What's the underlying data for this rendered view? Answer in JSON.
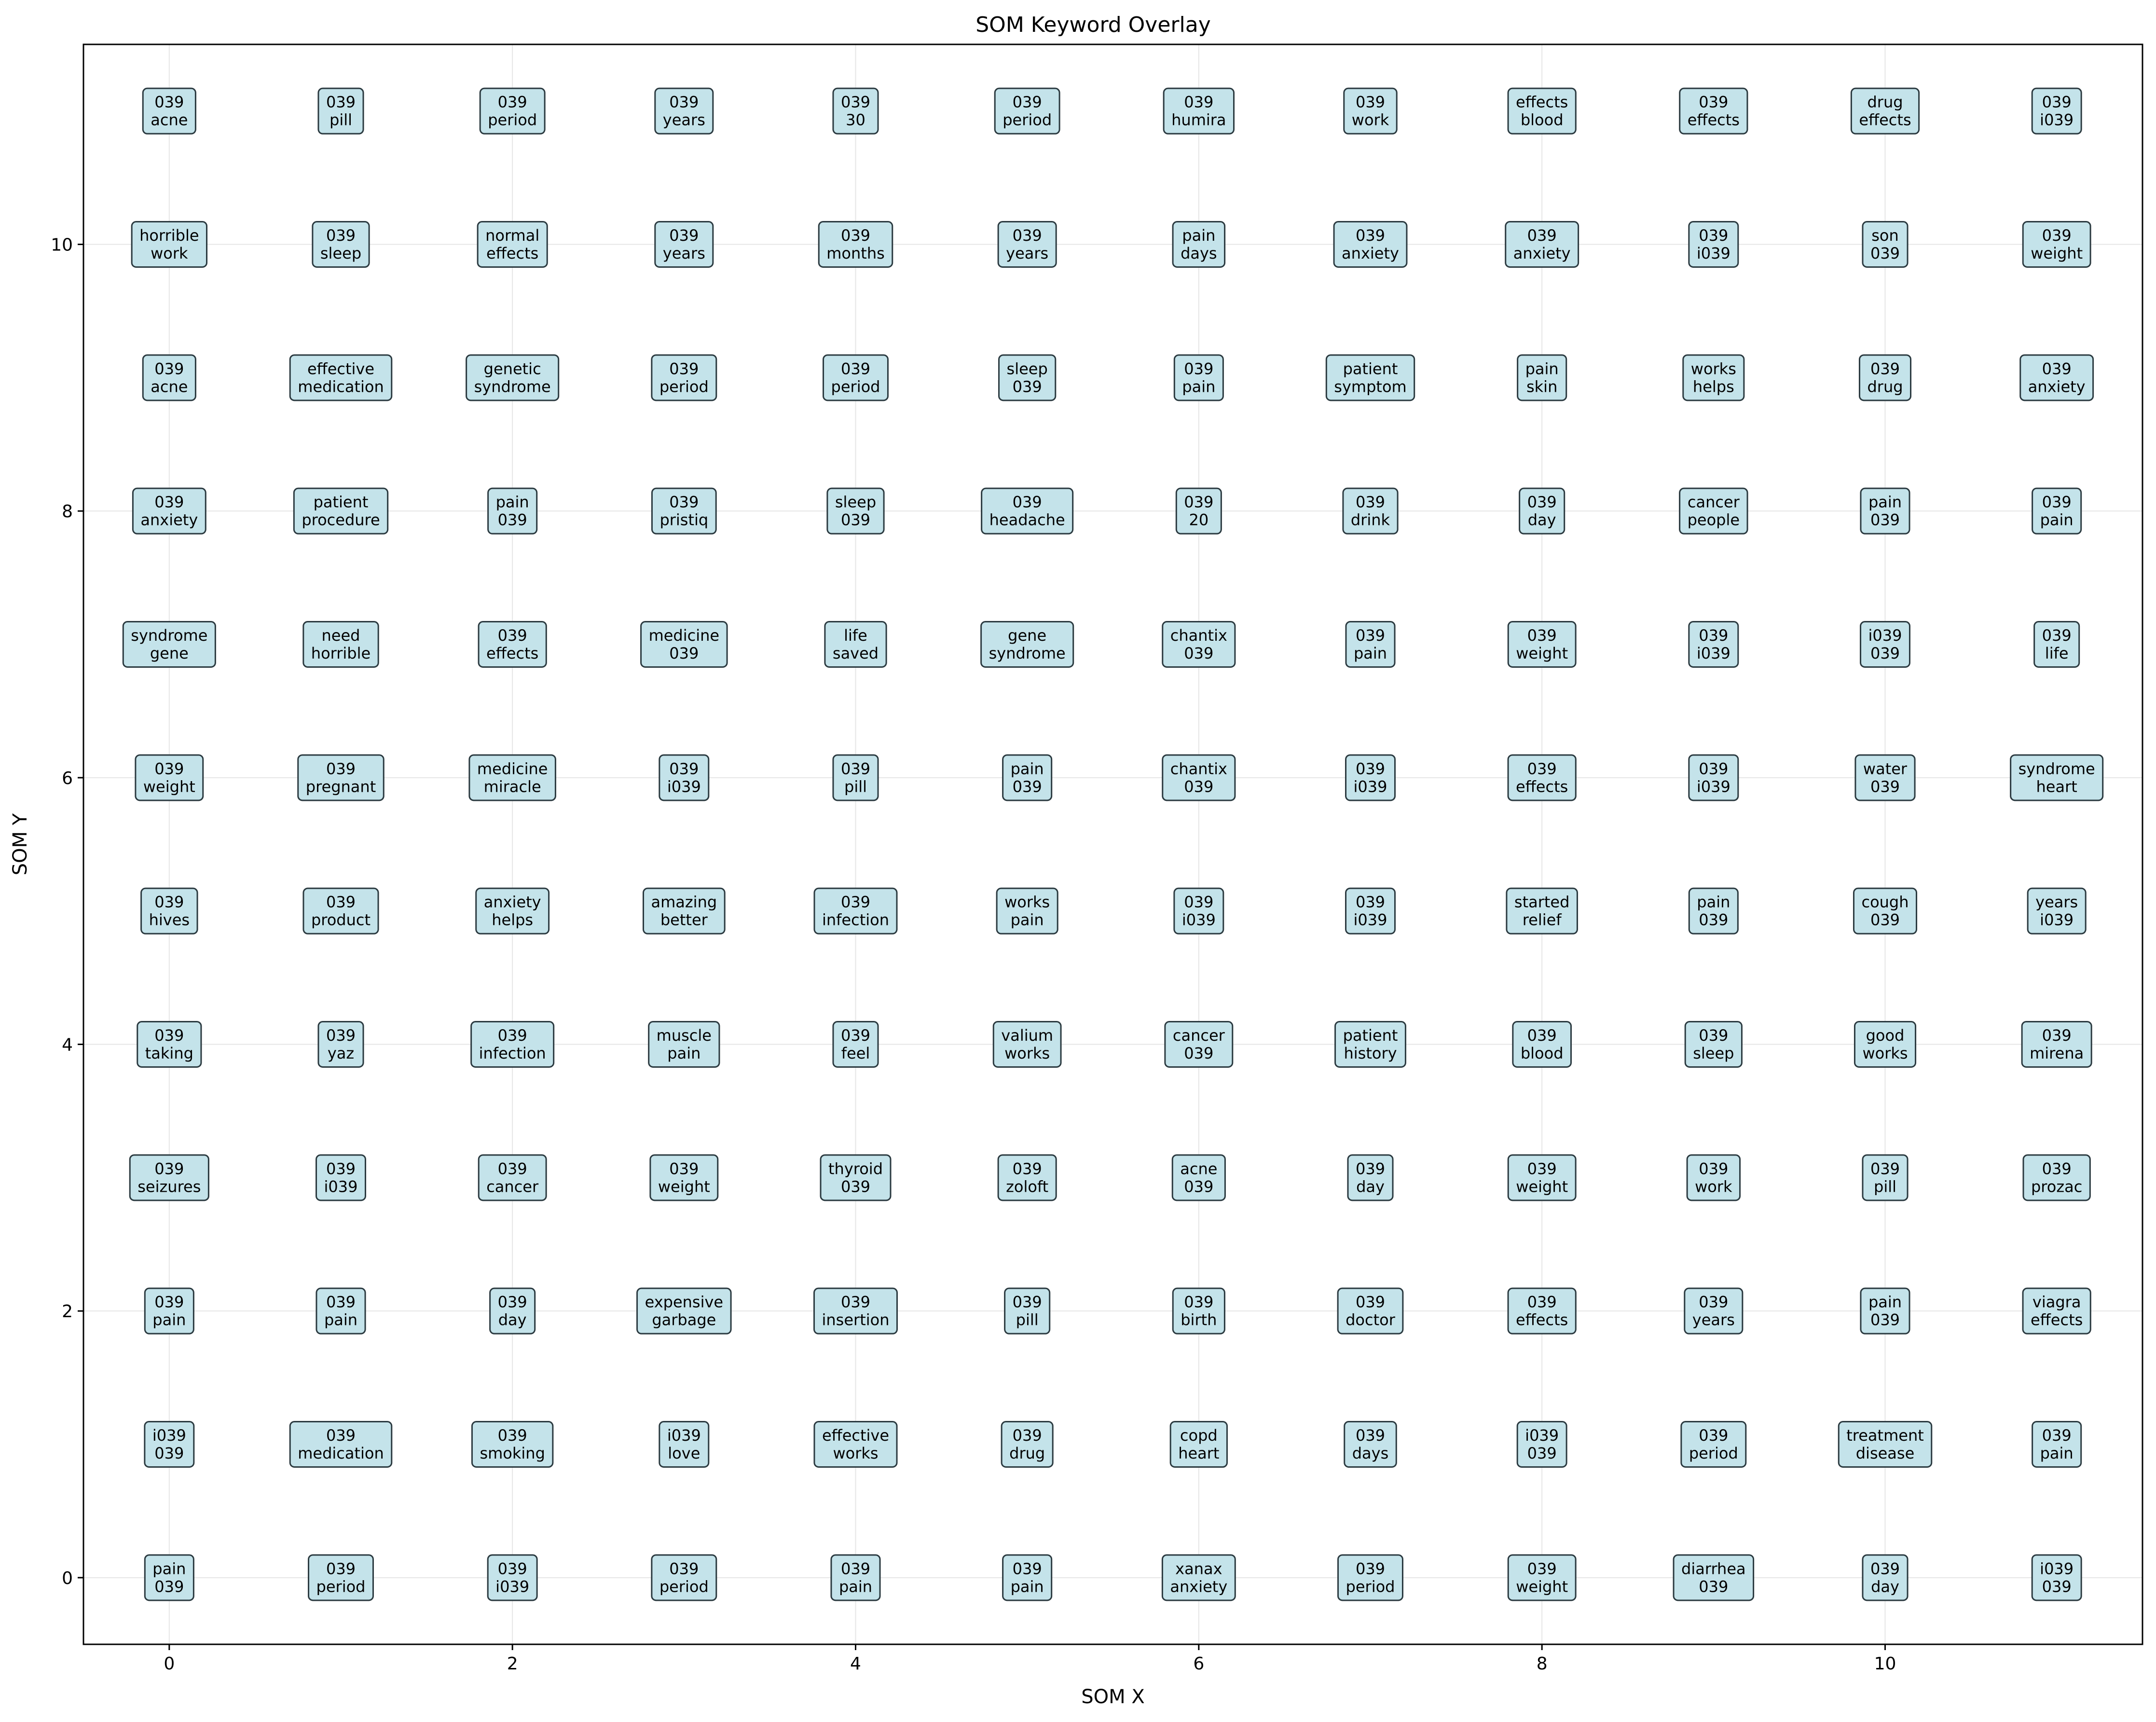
{
  "chart_data": {
    "type": "scatter",
    "title": "SOM Keyword Overlay",
    "xlabel": "SOM X",
    "ylabel": "SOM Y",
    "xlim": [
      -0.5,
      11.5
    ],
    "ylim": [
      -0.5,
      11.5
    ],
    "xticks": [
      0,
      2,
      4,
      6,
      8,
      10
    ],
    "yticks": [
      0,
      2,
      4,
      6,
      8,
      10
    ],
    "grid": true,
    "legend": "none",
    "colors": {
      "box_fill": "#c4e3ea",
      "box_edge": "#2b3a40",
      "grid": "#e6e6e6",
      "axes": "#000000"
    },
    "points": [
      {
        "x": 0,
        "y": 11,
        "labels": [
          "039",
          "acne"
        ]
      },
      {
        "x": 1,
        "y": 11,
        "labels": [
          "039",
          "pill"
        ]
      },
      {
        "x": 2,
        "y": 11,
        "labels": [
          "039",
          "period"
        ]
      },
      {
        "x": 3,
        "y": 11,
        "labels": [
          "039",
          "years"
        ]
      },
      {
        "x": 4,
        "y": 11,
        "labels": [
          "039",
          "30"
        ]
      },
      {
        "x": 5,
        "y": 11,
        "labels": [
          "039",
          "period"
        ]
      },
      {
        "x": 6,
        "y": 11,
        "labels": [
          "039",
          "humira"
        ]
      },
      {
        "x": 7,
        "y": 11,
        "labels": [
          "039",
          "work"
        ]
      },
      {
        "x": 8,
        "y": 11,
        "labels": [
          "effects",
          "blood"
        ]
      },
      {
        "x": 9,
        "y": 11,
        "labels": [
          "039",
          "effects"
        ]
      },
      {
        "x": 10,
        "y": 11,
        "labels": [
          "drug",
          "effects"
        ]
      },
      {
        "x": 11,
        "y": 11,
        "labels": [
          "039",
          "i039"
        ]
      },
      {
        "x": 0,
        "y": 10,
        "labels": [
          "horrible",
          "work"
        ]
      },
      {
        "x": 1,
        "y": 10,
        "labels": [
          "039",
          "sleep"
        ]
      },
      {
        "x": 2,
        "y": 10,
        "labels": [
          "normal",
          "effects"
        ]
      },
      {
        "x": 3,
        "y": 10,
        "labels": [
          "039",
          "years"
        ]
      },
      {
        "x": 4,
        "y": 10,
        "labels": [
          "039",
          "months"
        ]
      },
      {
        "x": 5,
        "y": 10,
        "labels": [
          "039",
          "years"
        ]
      },
      {
        "x": 6,
        "y": 10,
        "labels": [
          "pain",
          "days"
        ]
      },
      {
        "x": 7,
        "y": 10,
        "labels": [
          "039",
          "anxiety"
        ]
      },
      {
        "x": 8,
        "y": 10,
        "labels": [
          "039",
          "anxiety"
        ]
      },
      {
        "x": 9,
        "y": 10,
        "labels": [
          "039",
          "i039"
        ]
      },
      {
        "x": 10,
        "y": 10,
        "labels": [
          "son",
          "039"
        ]
      },
      {
        "x": 11,
        "y": 10,
        "labels": [
          "039",
          "weight"
        ]
      },
      {
        "x": 0,
        "y": 9,
        "labels": [
          "039",
          "acne"
        ]
      },
      {
        "x": 1,
        "y": 9,
        "labels": [
          "effective",
          "medication"
        ]
      },
      {
        "x": 2,
        "y": 9,
        "labels": [
          "genetic",
          "syndrome"
        ]
      },
      {
        "x": 3,
        "y": 9,
        "labels": [
          "039",
          "period"
        ]
      },
      {
        "x": 4,
        "y": 9,
        "labels": [
          "039",
          "period"
        ]
      },
      {
        "x": 5,
        "y": 9,
        "labels": [
          "sleep",
          "039"
        ]
      },
      {
        "x": 6,
        "y": 9,
        "labels": [
          "039",
          "pain"
        ]
      },
      {
        "x": 7,
        "y": 9,
        "labels": [
          "patient",
          "symptom"
        ]
      },
      {
        "x": 8,
        "y": 9,
        "labels": [
          "pain",
          "skin"
        ]
      },
      {
        "x": 9,
        "y": 9,
        "labels": [
          "works",
          "helps"
        ]
      },
      {
        "x": 10,
        "y": 9,
        "labels": [
          "039",
          "drug"
        ]
      },
      {
        "x": 11,
        "y": 9,
        "labels": [
          "039",
          "anxiety"
        ]
      },
      {
        "x": 0,
        "y": 8,
        "labels": [
          "039",
          "anxiety"
        ]
      },
      {
        "x": 1,
        "y": 8,
        "labels": [
          "patient",
          "procedure"
        ]
      },
      {
        "x": 2,
        "y": 8,
        "labels": [
          "pain",
          "039"
        ]
      },
      {
        "x": 3,
        "y": 8,
        "labels": [
          "039",
          "pristiq"
        ]
      },
      {
        "x": 4,
        "y": 8,
        "labels": [
          "sleep",
          "039"
        ]
      },
      {
        "x": 5,
        "y": 8,
        "labels": [
          "039",
          "headache"
        ]
      },
      {
        "x": 6,
        "y": 8,
        "labels": [
          "039",
          "20"
        ]
      },
      {
        "x": 7,
        "y": 8,
        "labels": [
          "039",
          "drink"
        ]
      },
      {
        "x": 8,
        "y": 8,
        "labels": [
          "039",
          "day"
        ]
      },
      {
        "x": 9,
        "y": 8,
        "labels": [
          "cancer",
          "people"
        ]
      },
      {
        "x": 10,
        "y": 8,
        "labels": [
          "pain",
          "039"
        ]
      },
      {
        "x": 11,
        "y": 8,
        "labels": [
          "039",
          "pain"
        ]
      },
      {
        "x": 0,
        "y": 7,
        "labels": [
          "syndrome",
          "gene"
        ]
      },
      {
        "x": 1,
        "y": 7,
        "labels": [
          "need",
          "horrible"
        ]
      },
      {
        "x": 2,
        "y": 7,
        "labels": [
          "039",
          "effects"
        ]
      },
      {
        "x": 3,
        "y": 7,
        "labels": [
          "medicine",
          "039"
        ]
      },
      {
        "x": 4,
        "y": 7,
        "labels": [
          "life",
          "saved"
        ]
      },
      {
        "x": 5,
        "y": 7,
        "labels": [
          "gene",
          "syndrome"
        ]
      },
      {
        "x": 6,
        "y": 7,
        "labels": [
          "chantix",
          "039"
        ]
      },
      {
        "x": 7,
        "y": 7,
        "labels": [
          "039",
          "pain"
        ]
      },
      {
        "x": 8,
        "y": 7,
        "labels": [
          "039",
          "weight"
        ]
      },
      {
        "x": 9,
        "y": 7,
        "labels": [
          "039",
          "i039"
        ]
      },
      {
        "x": 10,
        "y": 7,
        "labels": [
          "i039",
          "039"
        ]
      },
      {
        "x": 11,
        "y": 7,
        "labels": [
          "039",
          "life"
        ]
      },
      {
        "x": 0,
        "y": 6,
        "labels": [
          "039",
          "weight"
        ]
      },
      {
        "x": 1,
        "y": 6,
        "labels": [
          "039",
          "pregnant"
        ]
      },
      {
        "x": 2,
        "y": 6,
        "labels": [
          "medicine",
          "miracle"
        ]
      },
      {
        "x": 3,
        "y": 6,
        "labels": [
          "039",
          "i039"
        ]
      },
      {
        "x": 4,
        "y": 6,
        "labels": [
          "039",
          "pill"
        ]
      },
      {
        "x": 5,
        "y": 6,
        "labels": [
          "pain",
          "039"
        ]
      },
      {
        "x": 6,
        "y": 6,
        "labels": [
          "chantix",
          "039"
        ]
      },
      {
        "x": 7,
        "y": 6,
        "labels": [
          "039",
          "i039"
        ]
      },
      {
        "x": 8,
        "y": 6,
        "labels": [
          "039",
          "effects"
        ]
      },
      {
        "x": 9,
        "y": 6,
        "labels": [
          "039",
          "i039"
        ]
      },
      {
        "x": 10,
        "y": 6,
        "labels": [
          "water",
          "039"
        ]
      },
      {
        "x": 11,
        "y": 6,
        "labels": [
          "syndrome",
          "heart"
        ]
      },
      {
        "x": 0,
        "y": 5,
        "labels": [
          "039",
          "hives"
        ]
      },
      {
        "x": 1,
        "y": 5,
        "labels": [
          "039",
          "product"
        ]
      },
      {
        "x": 2,
        "y": 5,
        "labels": [
          "anxiety",
          "helps"
        ]
      },
      {
        "x": 3,
        "y": 5,
        "labels": [
          "amazing",
          "better"
        ]
      },
      {
        "x": 4,
        "y": 5,
        "labels": [
          "039",
          "infection"
        ]
      },
      {
        "x": 5,
        "y": 5,
        "labels": [
          "works",
          "pain"
        ]
      },
      {
        "x": 6,
        "y": 5,
        "labels": [
          "039",
          "i039"
        ]
      },
      {
        "x": 7,
        "y": 5,
        "labels": [
          "039",
          "i039"
        ]
      },
      {
        "x": 8,
        "y": 5,
        "labels": [
          "started",
          "relief"
        ]
      },
      {
        "x": 9,
        "y": 5,
        "labels": [
          "pain",
          "039"
        ]
      },
      {
        "x": 10,
        "y": 5,
        "labels": [
          "cough",
          "039"
        ]
      },
      {
        "x": 11,
        "y": 5,
        "labels": [
          "years",
          "i039"
        ]
      },
      {
        "x": 0,
        "y": 4,
        "labels": [
          "039",
          "taking"
        ]
      },
      {
        "x": 1,
        "y": 4,
        "labels": [
          "039",
          "yaz"
        ]
      },
      {
        "x": 2,
        "y": 4,
        "labels": [
          "039",
          "infection"
        ]
      },
      {
        "x": 3,
        "y": 4,
        "labels": [
          "muscle",
          "pain"
        ]
      },
      {
        "x": 4,
        "y": 4,
        "labels": [
          "039",
          "feel"
        ]
      },
      {
        "x": 5,
        "y": 4,
        "labels": [
          "valium",
          "works"
        ]
      },
      {
        "x": 6,
        "y": 4,
        "labels": [
          "cancer",
          "039"
        ]
      },
      {
        "x": 7,
        "y": 4,
        "labels": [
          "patient",
          "history"
        ]
      },
      {
        "x": 8,
        "y": 4,
        "labels": [
          "039",
          "blood"
        ]
      },
      {
        "x": 9,
        "y": 4,
        "labels": [
          "039",
          "sleep"
        ]
      },
      {
        "x": 10,
        "y": 4,
        "labels": [
          "good",
          "works"
        ]
      },
      {
        "x": 11,
        "y": 4,
        "labels": [
          "039",
          "mirena"
        ]
      },
      {
        "x": 0,
        "y": 3,
        "labels": [
          "039",
          "seizures"
        ]
      },
      {
        "x": 1,
        "y": 3,
        "labels": [
          "039",
          "i039"
        ]
      },
      {
        "x": 2,
        "y": 3,
        "labels": [
          "039",
          "cancer"
        ]
      },
      {
        "x": 3,
        "y": 3,
        "labels": [
          "039",
          "weight"
        ]
      },
      {
        "x": 4,
        "y": 3,
        "labels": [
          "thyroid",
          "039"
        ]
      },
      {
        "x": 5,
        "y": 3,
        "labels": [
          "039",
          "zoloft"
        ]
      },
      {
        "x": 6,
        "y": 3,
        "labels": [
          "acne",
          "039"
        ]
      },
      {
        "x": 7,
        "y": 3,
        "labels": [
          "039",
          "day"
        ]
      },
      {
        "x": 8,
        "y": 3,
        "labels": [
          "039",
          "weight"
        ]
      },
      {
        "x": 9,
        "y": 3,
        "labels": [
          "039",
          "work"
        ]
      },
      {
        "x": 10,
        "y": 3,
        "labels": [
          "039",
          "pill"
        ]
      },
      {
        "x": 11,
        "y": 3,
        "labels": [
          "039",
          "prozac"
        ]
      },
      {
        "x": 0,
        "y": 2,
        "labels": [
          "039",
          "pain"
        ]
      },
      {
        "x": 1,
        "y": 2,
        "labels": [
          "039",
          "pain"
        ]
      },
      {
        "x": 2,
        "y": 2,
        "labels": [
          "039",
          "day"
        ]
      },
      {
        "x": 3,
        "y": 2,
        "labels": [
          "expensive",
          "garbage"
        ]
      },
      {
        "x": 4,
        "y": 2,
        "labels": [
          "039",
          "insertion"
        ]
      },
      {
        "x": 5,
        "y": 2,
        "labels": [
          "039",
          "pill"
        ]
      },
      {
        "x": 6,
        "y": 2,
        "labels": [
          "039",
          "birth"
        ]
      },
      {
        "x": 7,
        "y": 2,
        "labels": [
          "039",
          "doctor"
        ]
      },
      {
        "x": 8,
        "y": 2,
        "labels": [
          "039",
          "effects"
        ]
      },
      {
        "x": 9,
        "y": 2,
        "labels": [
          "039",
          "years"
        ]
      },
      {
        "x": 10,
        "y": 2,
        "labels": [
          "pain",
          "039"
        ]
      },
      {
        "x": 11,
        "y": 2,
        "labels": [
          "viagra",
          "effects"
        ]
      },
      {
        "x": 0,
        "y": 1,
        "labels": [
          "i039",
          "039"
        ]
      },
      {
        "x": 1,
        "y": 1,
        "labels": [
          "039",
          "medication"
        ]
      },
      {
        "x": 2,
        "y": 1,
        "labels": [
          "039",
          "smoking"
        ]
      },
      {
        "x": 3,
        "y": 1,
        "labels": [
          "i039",
          "love"
        ]
      },
      {
        "x": 4,
        "y": 1,
        "labels": [
          "effective",
          "works"
        ]
      },
      {
        "x": 5,
        "y": 1,
        "labels": [
          "039",
          "drug"
        ]
      },
      {
        "x": 6,
        "y": 1,
        "labels": [
          "copd",
          "heart"
        ]
      },
      {
        "x": 7,
        "y": 1,
        "labels": [
          "039",
          "days"
        ]
      },
      {
        "x": 8,
        "y": 1,
        "labels": [
          "i039",
          "039"
        ]
      },
      {
        "x": 9,
        "y": 1,
        "labels": [
          "039",
          "period"
        ]
      },
      {
        "x": 10,
        "y": 1,
        "labels": [
          "treatment",
          "disease"
        ]
      },
      {
        "x": 11,
        "y": 1,
        "labels": [
          "039",
          "pain"
        ]
      },
      {
        "x": 0,
        "y": 0,
        "labels": [
          "pain",
          "039"
        ]
      },
      {
        "x": 1,
        "y": 0,
        "labels": [
          "039",
          "period"
        ]
      },
      {
        "x": 2,
        "y": 0,
        "labels": [
          "039",
          "i039"
        ]
      },
      {
        "x": 3,
        "y": 0,
        "labels": [
          "039",
          "period"
        ]
      },
      {
        "x": 4,
        "y": 0,
        "labels": [
          "039",
          "pain"
        ]
      },
      {
        "x": 5,
        "y": 0,
        "labels": [
          "039",
          "pain"
        ]
      },
      {
        "x": 6,
        "y": 0,
        "labels": [
          "xanax",
          "anxiety"
        ]
      },
      {
        "x": 7,
        "y": 0,
        "labels": [
          "039",
          "period"
        ]
      },
      {
        "x": 8,
        "y": 0,
        "labels": [
          "039",
          "weight"
        ]
      },
      {
        "x": 9,
        "y": 0,
        "labels": [
          "diarrhea",
          "039"
        ]
      },
      {
        "x": 10,
        "y": 0,
        "labels": [
          "039",
          "day"
        ]
      },
      {
        "x": 11,
        "y": 0,
        "labels": [
          "i039",
          "039"
        ]
      }
    ]
  }
}
